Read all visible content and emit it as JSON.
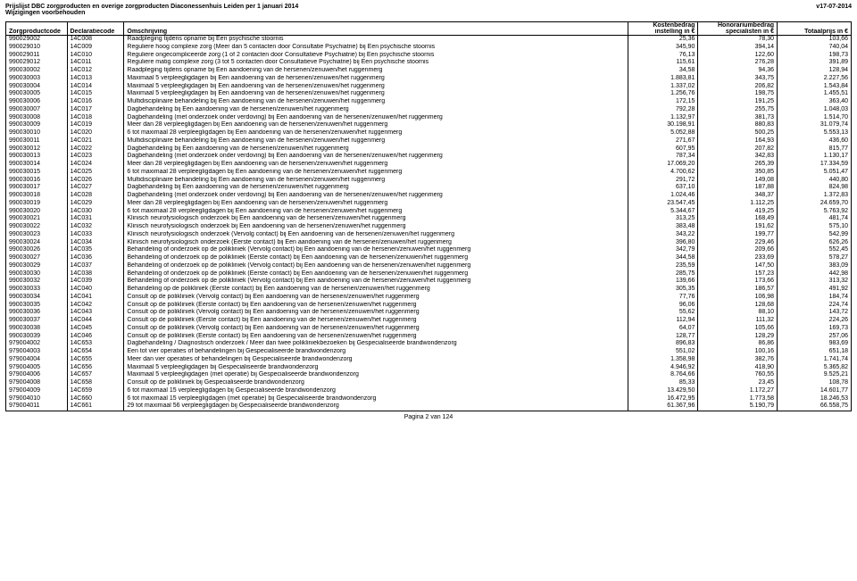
{
  "header": {
    "title": "Prijslijst DBC zorgproducten en overige zorgproducten Diaconessenhuis Leiden per 1 januari 2014",
    "version": "v17-07-2014",
    "subtitle": "Wijzigingen voorbehouden"
  },
  "table": {
    "columns": {
      "col1_h1": "",
      "col1_h2": "Zorgproductcode",
      "col2_h1": "",
      "col2_h2": "Declaratiecode",
      "col3_h1": "",
      "col3_h2": "Omschrijving",
      "col4_h1": "Kostenbedrag",
      "col4_h2": "instelling in €",
      "col5_h1": "Honorariumbedrag",
      "col5_h2": "specialisten in €",
      "col6_h1": "",
      "col6_h2": "Totaalprijs in €"
    },
    "rows": [
      {
        "p": "990029002",
        "d": "14C008",
        "o": "Raadpleging tijdens opname bij Een psychische stoornis",
        "k": "25,36",
        "h": "78,30",
        "t": "103,66"
      },
      {
        "p": "990029010",
        "d": "14C009",
        "o": "Reguliere hoog complexe zorg (Meer dan 5 contacten door Consultatie Psychiatrie) bij Een psychische stoornis",
        "k": "345,90",
        "h": "394,14",
        "t": "740,04"
      },
      {
        "p": "990029011",
        "d": "14C010",
        "o": "Reguliere ongecompliceerde zorg (1 of 2 contacten door Consultatieve Psychiatrie) bij Een psychische stoornis",
        "k": "76,13",
        "h": "122,60",
        "t": "198,73"
      },
      {
        "p": "990029012",
        "d": "14C011",
        "o": "Reguliere matig complexe zorg (3 tot 5 contacten door Consultatieve Psychiatrie) bij Een psychische stoornis",
        "k": "115,61",
        "h": "276,28",
        "t": "391,89"
      },
      {
        "p": "990030002",
        "d": "14C012",
        "o": "Raadpleging tijdens opname bij Een aandoening van de hersenen/zenuwen/het ruggenmerg",
        "k": "34,58",
        "h": "94,36",
        "t": "128,94"
      },
      {
        "p": "990030003",
        "d": "14C013",
        "o": "Maximaal 5 verpleegligdagen bij Een aandoening van de hersenen/zenuwen/het ruggenmerg",
        "k": "1.883,81",
        "h": "343,75",
        "t": "2.227,56"
      },
      {
        "p": "990030004",
        "d": "14C014",
        "o": "Maximaal 5 verpleegligdagen bij Een aandoening van de hersenen/zenuwen/het ruggenmerg",
        "k": "1.337,02",
        "h": "206,82",
        "t": "1.543,84"
      },
      {
        "p": "990030005",
        "d": "14C015",
        "o": "Maximaal 5 verpleegligdagen bij Een aandoening van de hersenen/zenuwen/het ruggenmerg",
        "k": "1.256,76",
        "h": "198,75",
        "t": "1.455,51"
      },
      {
        "p": "990030006",
        "d": "14C016",
        "o": "Multidisciplinaire behandeling bij Een aandoening van de hersenen/zenuwen/het ruggenmerg",
        "k": "172,15",
        "h": "191,25",
        "t": "363,40"
      },
      {
        "p": "990030007",
        "d": "14C017",
        "o": "Dagbehandeling bij Een aandoening van de hersenen/zenuwen/het ruggenmerg",
        "k": "792,28",
        "h": "255,75",
        "t": "1.048,03"
      },
      {
        "p": "990030008",
        "d": "14C018",
        "o": "Dagbehandeling (met onderzoek onder verdoving) bij Een aandoening van de hersenen/zenuwen/het ruggenmerg",
        "k": "1.132,97",
        "h": "381,73",
        "t": "1.514,70"
      },
      {
        "p": "990030009",
        "d": "14C019",
        "o": "Meer dan 28 verpleegligdagen bij Een aandoening van de hersenen/zenuwen/het ruggenmerg",
        "k": "30.198,91",
        "h": "880,83",
        "t": "31.079,74"
      },
      {
        "p": "990030010",
        "d": "14C020",
        "o": "6 tot maximaal 28 verpleegligdagen bij Een aandoening van de hersenen/zenuwen/het ruggenmerg",
        "k": "5.052,88",
        "h": "500,25",
        "t": "5.553,13"
      },
      {
        "p": "990030011",
        "d": "14C021",
        "o": "Multidisciplinaire behandeling bij Een aandoening van de hersenen/zenuwen/het ruggenmerg",
        "k": "271,67",
        "h": "164,93",
        "t": "436,60"
      },
      {
        "p": "990030012",
        "d": "14C022",
        "o": "Dagbehandeling bij Een aandoening van de hersenen/zenuwen/het ruggenmerg",
        "k": "607,95",
        "h": "207,82",
        "t": "815,77"
      },
      {
        "p": "990030013",
        "d": "14C023",
        "o": "Dagbehandeling (met onderzoek onder verdoving) bij Een aandoening van de hersenen/zenuwen/het ruggenmerg",
        "k": "787,34",
        "h": "342,83",
        "t": "1.130,17"
      },
      {
        "p": "990030014",
        "d": "14C024",
        "o": "Meer dan 28 verpleegligdagen bij Een aandoening van de hersenen/zenuwen/het ruggenmerg",
        "k": "17.069,20",
        "h": "265,39",
        "t": "17.334,59"
      },
      {
        "p": "990030015",
        "d": "14C025",
        "o": "6 tot maximaal 28 verpleegligdagen bij Een aandoening van de hersenen/zenuwen/het ruggenmerg",
        "k": "4.700,62",
        "h": "350,85",
        "t": "5.051,47"
      },
      {
        "p": "990030016",
        "d": "14C026",
        "o": "Multidisciplinaire behandeling bij Een aandoening van de hersenen/zenuwen/het ruggenmerg",
        "k": "291,72",
        "h": "149,08",
        "t": "440,80"
      },
      {
        "p": "990030017",
        "d": "14C027",
        "o": "Dagbehandeling bij Een aandoening van de hersenen/zenuwen/het ruggenmerg",
        "k": "637,10",
        "h": "187,88",
        "t": "824,98"
      },
      {
        "p": "990030018",
        "d": "14C028",
        "o": "Dagbehandeling (met onderzoek onder verdoving) bij Een aandoening van de hersenen/zenuwen/het ruggenmerg",
        "k": "1.024,46",
        "h": "348,37",
        "t": "1.372,83"
      },
      {
        "p": "990030019",
        "d": "14C029",
        "o": "Meer dan 28 verpleegligdagen bij Een aandoening van de hersenen/zenuwen/het ruggenmerg",
        "k": "23.547,45",
        "h": "1.112,25",
        "t": "24.659,70"
      },
      {
        "p": "990030020",
        "d": "14C030",
        "o": "6 tot maximaal 28 verpleegligdagen bij Een aandoening van de hersenen/zenuwen/het ruggenmerg",
        "k": "5.344,67",
        "h": "419,25",
        "t": "5.763,92"
      },
      {
        "p": "990030021",
        "d": "14C031",
        "o": "Klinisch neurofysiologisch onderzoek bij Een aandoening van de hersenen/zenuwen/het ruggenmerg",
        "k": "313,25",
        "h": "168,49",
        "t": "481,74"
      },
      {
        "p": "990030022",
        "d": "14C032",
        "o": "Klinisch neurofysiologisch onderzoek bij Een aandoening van de hersenen/zenuwen/het ruggenmerg",
        "k": "383,48",
        "h": "191,62",
        "t": "575,10"
      },
      {
        "p": "990030023",
        "d": "14C033",
        "o": "Klinisch neurofysiologisch onderzoek (Vervolg contact) bij Een aandoening van de hersenen/zenuwen/het ruggenmerg",
        "k": "343,22",
        "h": "199,77",
        "t": "542,99"
      },
      {
        "p": "990030024",
        "d": "14C034",
        "o": "Klinisch neurofysiologisch onderzoek (Eerste contact) bij Een aandoening van de hersenen/zenuwen/het ruggenmerg",
        "k": "396,80",
        "h": "229,46",
        "t": "626,26"
      },
      {
        "p": "990030026",
        "d": "14C035",
        "o": "Behandeling of onderzoek op de polikliniek (Vervolg contact) bij Een aandoening van de hersenen/zenuwen/het ruggenmerg",
        "k": "342,79",
        "h": "209,66",
        "t": "552,45"
      },
      {
        "p": "990030027",
        "d": "14C036",
        "o": "Behandeling of onderzoek op de polikliniek (Eerste contact) bij Een aandoening van de hersenen/zenuwen/het ruggenmerg",
        "k": "344,58",
        "h": "233,69",
        "t": "578,27"
      },
      {
        "p": "990030029",
        "d": "14C037",
        "o": "Behandeling of onderzoek op de polikliniek (Vervolg contact) bij Een aandoening van de hersenen/zenuwen/het ruggenmerg",
        "k": "235,59",
        "h": "147,50",
        "t": "383,09"
      },
      {
        "p": "990030030",
        "d": "14C038",
        "o": "Behandeling of onderzoek op de polikliniek (Eerste contact) bij Een aandoening van de hersenen/zenuwen/het ruggenmerg",
        "k": "285,75",
        "h": "157,23",
        "t": "442,98"
      },
      {
        "p": "990030032",
        "d": "14C039",
        "o": "Behandeling of onderzoek op de polikliniek (Vervolg contact) bij Een aandoening van de hersenen/zenuwen/het ruggenmerg",
        "k": "139,66",
        "h": "173,66",
        "t": "313,32"
      },
      {
        "p": "990030033",
        "d": "14C040",
        "o": "Behandeling op de polikliniek (Eerste contact) bij Een aandoening van de hersenen/zenuwen/het ruggenmerg",
        "k": "305,35",
        "h": "186,57",
        "t": "491,92"
      },
      {
        "p": "990030034",
        "d": "14C041",
        "o": "Consult op de polikliniek (Vervolg contact) bij Een aandoening van de hersenen/zenuwen/het ruggenmerg",
        "k": "77,76",
        "h": "106,98",
        "t": "184,74"
      },
      {
        "p": "990030035",
        "d": "14C042",
        "o": "Consult op de polikliniek (Eerste contact) bij Een aandoening van de hersenen/zenuwen/het ruggenmerg",
        "k": "96,06",
        "h": "128,68",
        "t": "224,74"
      },
      {
        "p": "990030036",
        "d": "14C043",
        "o": "Consult op de polikliniek (Vervolg contact) bij Een aandoening van de hersenen/zenuwen/het ruggenmerg",
        "k": "55,62",
        "h": "88,10",
        "t": "143,72"
      },
      {
        "p": "990030037",
        "d": "14C044",
        "o": "Consult op de polikliniek (Eerste contact) bij Een aandoening van de hersenen/zenuwen/het ruggenmerg",
        "k": "112,94",
        "h": "111,32",
        "t": "224,26"
      },
      {
        "p": "990030038",
        "d": "14C045",
        "o": "Consult op de polikliniek (Vervolg contact) bij Een aandoening van de hersenen/zenuwen/het ruggenmerg",
        "k": "64,07",
        "h": "105,66",
        "t": "169,73"
      },
      {
        "p": "990030039",
        "d": "14C046",
        "o": "Consult op de polikliniek (Eerste contact) bij Een aandoening van de hersenen/zenuwen/het ruggenmerg",
        "k": "128,77",
        "h": "128,29",
        "t": "257,06"
      },
      {
        "p": "979004002",
        "d": "14C653",
        "o": "Dagbehandeling / Diagnostisch onderzoek / Meer dan twee polikliniekbezoeken bij Gespecialiseerde brandwondenzorg",
        "k": "896,83",
        "h": "86,86",
        "t": "983,69"
      },
      {
        "p": "979004003",
        "d": "14C654",
        "o": "Een tot vier operaties of behandelingen bij Gespecialiseerde brandwondenzorg",
        "k": "551,02",
        "h": "100,16",
        "t": "651,18"
      },
      {
        "p": "979004004",
        "d": "14C655",
        "o": "Meer dan vier operaties of behandelingen bij Gespecialiseerde brandwondenzorg",
        "k": "1.358,98",
        "h": "382,76",
        "t": "1.741,74"
      },
      {
        "p": "979004005",
        "d": "14C656",
        "o": "Maximaal 5 verpleegligdagen bij Gespecialiseerde brandwondenzorg",
        "k": "4.946,92",
        "h": "418,90",
        "t": "5.365,82"
      },
      {
        "p": "979004006",
        "d": "14C657",
        "o": "Maximaal 5 verpleegligdagen (met operatie) bij Gespecialiseerde brandwondenzorg",
        "k": "8.764,66",
        "h": "760,55",
        "t": "9.525,21"
      },
      {
        "p": "979004008",
        "d": "14C658",
        "o": "Consult op de polikliniek bij Gespecialiseerde brandwondenzorg",
        "k": "85,33",
        "h": "23,45",
        "t": "108,78"
      },
      {
        "p": "979004009",
        "d": "14C659",
        "o": "6 tot maximaal 15 verpleegligdagen bij Gespecialiseerde brandwondenzorg",
        "k": "13.429,50",
        "h": "1.172,27",
        "t": "14.601,77"
      },
      {
        "p": "979004010",
        "d": "14C660",
        "o": "6 tot maximaal 15 verpleegligdagen (met operatie) bij Gespecialiseerde brandwondenzorg",
        "k": "16.472,95",
        "h": "1.773,58",
        "t": "18.246,53"
      },
      {
        "p": "979004011",
        "d": "14C661",
        "o": "29 tot maximaal 56 verpleegligdagen bij Gespecialiseerde brandwondenzorg",
        "k": "61.367,96",
        "h": "5.190,79",
        "t": "66.558,75"
      }
    ]
  },
  "footer": {
    "page": "Pagina 2 van 124"
  }
}
